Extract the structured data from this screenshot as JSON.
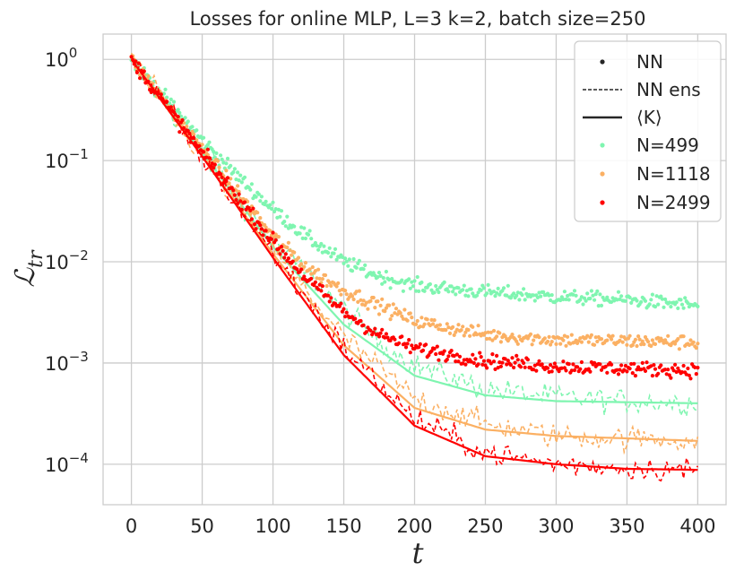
{
  "chart_data": {
    "type": "line",
    "title": "Losses for online MLP, L=3 k=2, batch size=250",
    "xlabel": "t",
    "ylabel": "ℒ",
    "ylabel_sub": "tr",
    "xscale": "linear",
    "yscale": "log",
    "xlim": [
      -20,
      420
    ],
    "ylim_exp": [
      -4.4,
      0.25
    ],
    "xticks": [
      0,
      50,
      100,
      150,
      200,
      250,
      300,
      350,
      400
    ],
    "xtick_labels": [
      "0",
      "50",
      "100",
      "150",
      "200",
      "250",
      "300",
      "350",
      "400"
    ],
    "yticks_exp": [
      0,
      -1,
      -2,
      -3,
      -4
    ],
    "ytick_base": "10",
    "ytick_sup": [
      "0",
      "−1",
      "−2",
      "−3",
      "−4"
    ],
    "grid": true,
    "legend": {
      "placement": "top-right",
      "style_entries": [
        {
          "label": "NN",
          "marker": "dot"
        },
        {
          "label": "NN ens",
          "marker": "dashed"
        },
        {
          "label": "⟨K⟩",
          "marker": "solid"
        }
      ],
      "color_entries": [
        {
          "label": "N=499",
          "color": "#7ff5b0"
        },
        {
          "label": "N=1118",
          "color": "#fbb063"
        },
        {
          "label": "N=2499",
          "color": "#ff0000"
        }
      ]
    },
    "series": [
      {
        "name": "N=499",
        "color": "#7ff5b0",
        "nn": {
          "t": [
            0,
            50,
            75,
            100,
            125,
            150,
            175,
            200,
            250,
            300,
            350,
            400
          ],
          "loss": [
            1.0,
            0.16,
            0.07,
            0.033,
            0.017,
            0.01,
            0.0072,
            0.0058,
            0.005,
            0.0045,
            0.0042,
            0.0037
          ]
        },
        "nn_ens": {
          "t": [
            0,
            50,
            100,
            150,
            175,
            200,
            250,
            300,
            350,
            400
          ],
          "loss": [
            1.0,
            0.12,
            0.016,
            0.0034,
            0.0016,
            0.00095,
            0.00055,
            0.00046,
            0.00042,
            0.0004
          ]
        },
        "kernel": {
          "t": [
            0,
            50,
            100,
            150,
            200,
            250,
            300,
            350,
            400
          ],
          "loss": [
            1.0,
            0.12,
            0.014,
            0.0024,
            0.00075,
            0.00048,
            0.00042,
            0.00041,
            0.0004
          ]
        }
      },
      {
        "name": "N=1118",
        "color": "#fbb063",
        "nn": {
          "t": [
            0,
            50,
            100,
            125,
            150,
            175,
            200,
            250,
            300,
            350,
            400
          ],
          "loss": [
            1.0,
            0.13,
            0.018,
            0.0085,
            0.0052,
            0.0037,
            0.0026,
            0.0019,
            0.0017,
            0.00165,
            0.0016
          ]
        },
        "nn_ens": {
          "t": [
            0,
            50,
            100,
            150,
            200,
            250,
            300,
            350,
            400
          ],
          "loss": [
            1.0,
            0.11,
            0.013,
            0.0018,
            0.00045,
            0.00025,
            0.00019,
            0.00018,
            0.00017
          ]
        },
        "kernel": {
          "t": [
            0,
            50,
            100,
            150,
            200,
            250,
            300,
            350,
            400
          ],
          "loss": [
            1.0,
            0.11,
            0.012,
            0.0015,
            0.00036,
            0.00022,
            0.00019,
            0.00018,
            0.00017
          ]
        }
      },
      {
        "name": "N=2499",
        "color": "#ff0000",
        "nn": {
          "t": [
            0,
            50,
            100,
            125,
            150,
            175,
            200,
            250,
            300,
            350,
            400
          ],
          "loss": [
            1.0,
            0.12,
            0.016,
            0.0065,
            0.0032,
            0.0019,
            0.0014,
            0.00105,
            0.00093,
            0.00088,
            0.00085
          ]
        },
        "nn_ens": {
          "t": [
            0,
            50,
            100,
            150,
            200,
            250,
            300,
            350,
            400
          ],
          "loss": [
            1.0,
            0.11,
            0.012,
            0.0014,
            0.00028,
            0.00013,
            0.0001,
            9.2e-05,
            8.8e-05
          ]
        },
        "kernel": {
          "t": [
            0,
            50,
            100,
            150,
            200,
            250,
            300,
            350,
            400
          ],
          "loss": [
            1.0,
            0.11,
            0.011,
            0.0012,
            0.00024,
            0.00012,
            0.0001,
            9e-05,
            8.8e-05
          ]
        }
      }
    ]
  }
}
